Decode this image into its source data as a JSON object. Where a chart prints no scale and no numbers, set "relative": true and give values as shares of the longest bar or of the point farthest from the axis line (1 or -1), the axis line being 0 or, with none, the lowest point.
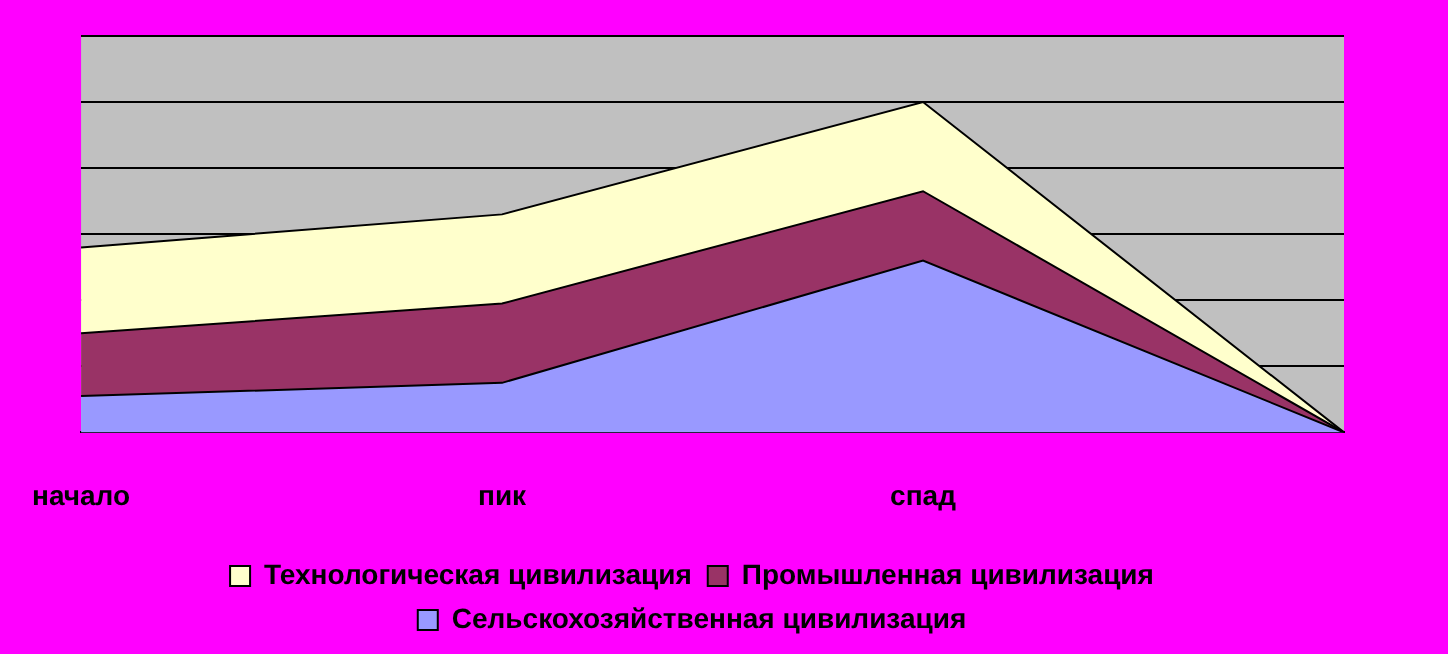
{
  "chart_data": {
    "type": "area",
    "stacked": true,
    "relative": true,
    "grid": "y",
    "legend": "bottom",
    "categories": [
      "начало",
      "пик",
      "спад",
      null
    ],
    "series": [
      {
        "name": "Сельскохозяйственная цивилизация",
        "color": "#9999ff",
        "values": [
          0.11,
          0.15,
          0.52,
          0
        ]
      },
      {
        "name": "Промышленная цивилизация",
        "color": "#993366",
        "values": [
          0.19,
          0.24,
          0.21,
          0
        ]
      },
      {
        "name": "Технологическая цивилизация",
        "color": "#ffffcc",
        "values": [
          0.26,
          0.27,
          0.27,
          0
        ]
      }
    ]
  }
}
